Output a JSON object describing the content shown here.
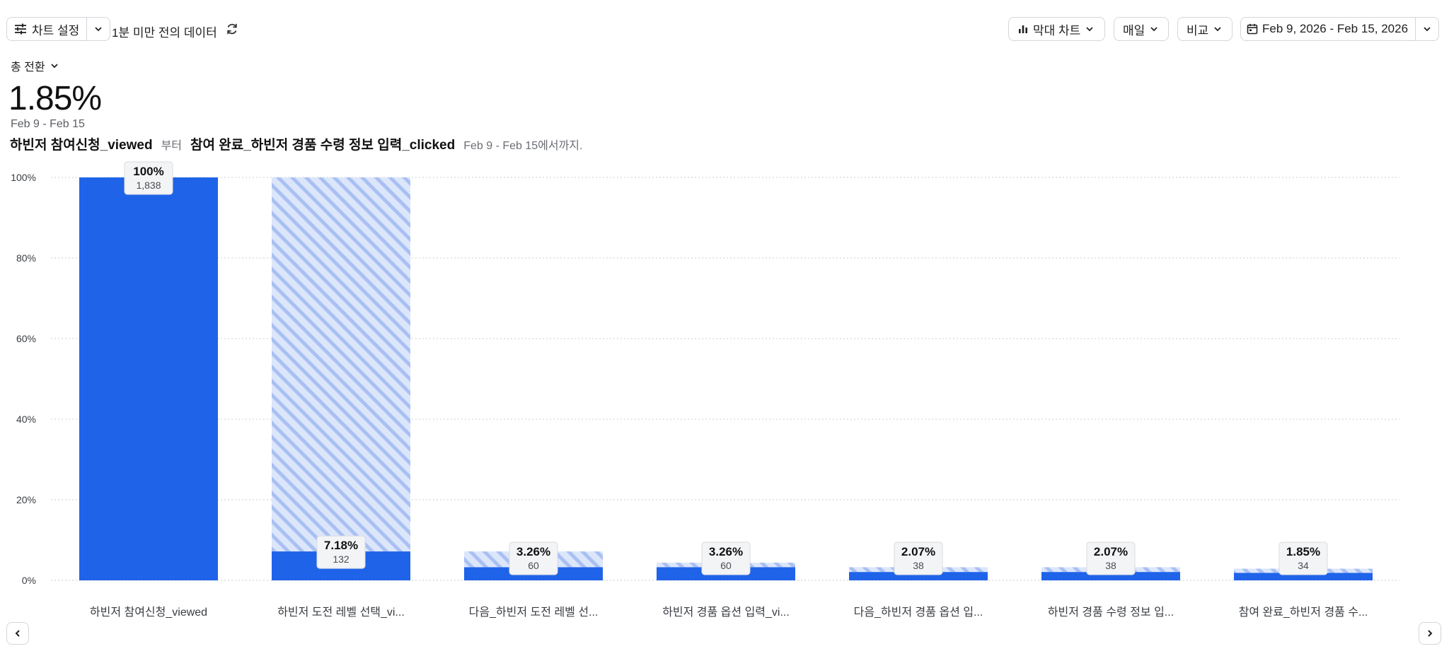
{
  "toolbar": {
    "chart_settings_label": "차트 설정",
    "data_freshness": "1분 미만 전의 데이터",
    "chart_type_label": "막대 차트",
    "interval_label": "매일",
    "compare_label": "비교",
    "date_range_label": "Feb 9, 2026 - Feb 15, 2026"
  },
  "summary": {
    "metric_label": "총 전환",
    "value": "1.85%",
    "date_range": "Feb 9 - Feb 15",
    "from_event": "하빈저 참여신청_viewed",
    "from_word": "부터",
    "to_event": "참여 완료_하빈저 경품 수령 정보 입력_clicked",
    "suffix": "Feb 9 - Feb 15에서까지."
  },
  "chart_data": {
    "type": "bar",
    "categories": [
      "하빈저 참여신청_viewed",
      "하빈저 도전 레벨 선택_vi...",
      "다음_하빈저 도전 레벨 선...",
      "하빈저 경품 옵션 입력_vi...",
      "다음_하빈저 경품 옵션 입...",
      "하빈저 경품 수령 정보 입...",
      "참여 완료_하빈저 경품 수..."
    ],
    "values": [
      100,
      7.18,
      3.26,
      3.26,
      2.07,
      2.07,
      1.85
    ],
    "dropoff_from_previous": [
      0,
      100,
      7.18,
      4.4,
      3.26,
      3.26,
      2.9
    ],
    "value_labels": [
      "100%",
      "7.18%",
      "3.26%",
      "3.26%",
      "2.07%",
      "2.07%",
      "1.85%"
    ],
    "counts": [
      "1,838",
      "132",
      "60",
      "60",
      "38",
      "38",
      "34"
    ],
    "y_ticks": [
      "0%",
      "20%",
      "40%",
      "60%",
      "80%",
      "100%"
    ],
    "ylim": [
      0,
      100
    ],
    "grid": true,
    "colors": {
      "bar": "#1f63e9",
      "dropoff_stripe": "#a9c0f2",
      "dropoff_bg": "#dce6fb",
      "grid": "#c9ccd1"
    }
  }
}
